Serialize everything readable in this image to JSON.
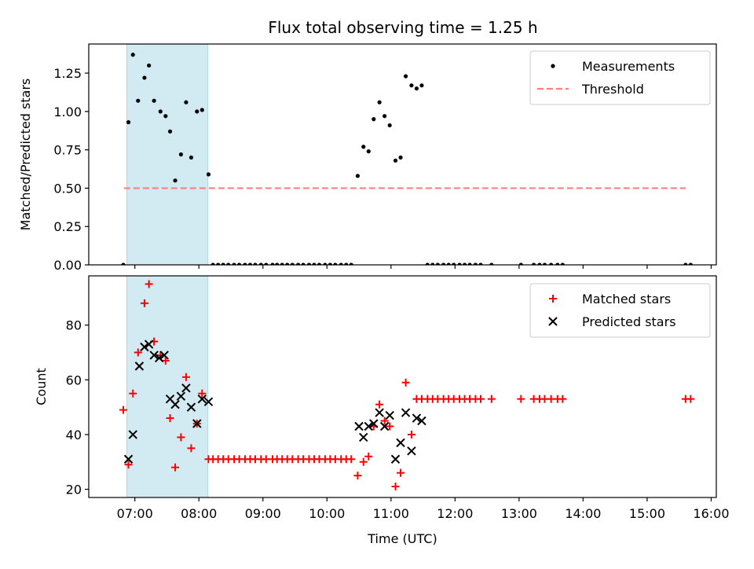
{
  "figure": {
    "title": "Flux total observing time = 1.25 h"
  },
  "chart_data": [
    {
      "type": "scatter",
      "panel": "top",
      "ylabel": "Matched/Predicted stars",
      "xlabel": "",
      "ylim": [
        0,
        1.44
      ],
      "yticks": [
        "0.00",
        "0.25",
        "0.50",
        "0.75",
        "1.00",
        "1.25"
      ],
      "yticks_values": [
        0,
        0.25,
        0.5,
        0.75,
        1.0,
        1.25
      ],
      "xlim_hours": [
        6.28,
        16.08
      ],
      "shaded_span_hours": [
        6.875,
        8.14
      ],
      "shaded_color": "#add8e6",
      "grid": false,
      "legend_position": "top-right",
      "legend": [
        "Measurements",
        "Threshold"
      ],
      "threshold": {
        "name": "Threshold",
        "value": 0.5,
        "x_range_hours": [
          6.83,
          15.6
        ],
        "color": "#ff7f7f",
        "style": "dashed"
      },
      "series": [
        {
          "name": "Measurements",
          "color": "#000000",
          "marker": "dot",
          "x_hours": [
            6.82,
            6.9,
            6.97,
            7.05,
            7.15,
            7.22,
            7.3,
            7.4,
            7.48,
            7.55,
            7.63,
            7.72,
            7.8,
            7.88,
            7.97,
            8.05,
            8.15,
            8.22,
            8.3,
            8.38,
            8.46,
            8.55,
            8.63,
            8.72,
            8.8,
            8.88,
            8.97,
            9.05,
            9.15,
            9.22,
            9.3,
            9.38,
            9.46,
            9.55,
            9.63,
            9.72,
            9.8,
            9.88,
            9.97,
            10.05,
            10.13,
            10.22,
            10.3,
            10.38,
            10.48,
            10.57,
            10.65,
            10.73,
            10.82,
            10.9,
            10.98,
            11.07,
            11.15,
            11.23,
            11.32,
            11.4,
            11.48,
            11.57,
            11.65,
            11.73,
            11.82,
            11.9,
            11.98,
            12.07,
            12.15,
            12.23,
            12.32,
            12.4,
            12.57,
            13.03,
            13.23,
            13.32,
            13.4,
            13.5,
            13.6,
            13.68,
            15.6,
            15.68
          ],
          "y": [
            0.0,
            0.93,
            1.37,
            1.07,
            1.22,
            1.3,
            1.07,
            1.0,
            0.97,
            0.87,
            0.55,
            0.72,
            1.06,
            0.7,
            1.0,
            1.01,
            0.59,
            0.0,
            0.0,
            0.0,
            0.0,
            0.0,
            0.0,
            0.0,
            0.0,
            0.0,
            0.0,
            0.0,
            0.0,
            0.0,
            0.0,
            0.0,
            0.0,
            0.0,
            0.0,
            0.0,
            0.0,
            0.0,
            0.0,
            0.0,
            0.0,
            0.0,
            0.0,
            0.0,
            0.58,
            0.77,
            0.74,
            0.95,
            1.06,
            0.97,
            0.91,
            0.68,
            0.7,
            1.23,
            1.17,
            1.15,
            1.17,
            0.0,
            0.0,
            0.0,
            0.0,
            0.0,
            0.0,
            0.0,
            0.0,
            0.0,
            0.0,
            0.0,
            0.0,
            0.0,
            0.0,
            0.0,
            0.0,
            0.0,
            0.0,
            0.0,
            0.0,
            0.0
          ]
        }
      ]
    },
    {
      "type": "scatter",
      "panel": "bottom",
      "ylabel": "Count",
      "xlabel": "Time (UTC)",
      "ylim": [
        17,
        98
      ],
      "yticks": [
        "20",
        "40",
        "60",
        "80"
      ],
      "yticks_values": [
        20,
        40,
        60,
        80
      ],
      "xlim_hours": [
        6.28,
        16.08
      ],
      "xticks": [
        "07:00",
        "08:00",
        "09:00",
        "10:00",
        "11:00",
        "12:00",
        "13:00",
        "14:00",
        "15:00",
        "16:00"
      ],
      "xticks_hours": [
        7,
        8,
        9,
        10,
        11,
        12,
        13,
        14,
        15,
        16
      ],
      "shaded_span_hours": [
        6.875,
        8.14
      ],
      "shaded_color": "#add8e6",
      "grid": false,
      "legend_position": "top-right",
      "legend": [
        "Matched stars",
        "Predicted stars"
      ],
      "series": [
        {
          "name": "Matched stars",
          "color": "#ff0000",
          "marker": "plus",
          "x_hours": [
            6.82,
            6.9,
            6.97,
            7.05,
            7.15,
            7.22,
            7.3,
            7.4,
            7.48,
            7.55,
            7.63,
            7.72,
            7.8,
            7.88,
            7.97,
            8.05,
            8.15,
            8.22,
            8.3,
            8.38,
            8.46,
            8.55,
            8.63,
            8.72,
            8.8,
            8.88,
            8.97,
            9.05,
            9.15,
            9.22,
            9.3,
            9.38,
            9.46,
            9.55,
            9.63,
            9.72,
            9.8,
            9.88,
            9.97,
            10.05,
            10.13,
            10.22,
            10.3,
            10.38,
            10.48,
            10.57,
            10.65,
            10.73,
            10.82,
            10.9,
            10.98,
            11.07,
            11.15,
            11.23,
            11.32,
            11.4,
            11.48,
            11.57,
            11.65,
            11.73,
            11.82,
            11.9,
            11.98,
            12.07,
            12.15,
            12.23,
            12.32,
            12.4,
            12.57,
            13.03,
            13.23,
            13.32,
            13.4,
            13.5,
            13.6,
            13.68,
            15.6,
            15.68
          ],
          "y": [
            49,
            29,
            55,
            70,
            88,
            95,
            74,
            69,
            67,
            46,
            28,
            39,
            61,
            35,
            44,
            55,
            31,
            31,
            31,
            31,
            31,
            31,
            31,
            31,
            31,
            31,
            31,
            31,
            31,
            31,
            31,
            31,
            31,
            31,
            31,
            31,
            31,
            31,
            31,
            31,
            31,
            31,
            31,
            31,
            25,
            30,
            32,
            43,
            51,
            45,
            43,
            21,
            26,
            59,
            40,
            53,
            53,
            53,
            53,
            53,
            53,
            53,
            53,
            53,
            53,
            53,
            53,
            53,
            53,
            53,
            53,
            53,
            53,
            53,
            53,
            53,
            53,
            53
          ]
        },
        {
          "name": "Predicted stars",
          "color": "#000000",
          "marker": "x",
          "x_hours": [
            6.9,
            6.97,
            7.07,
            7.15,
            7.22,
            7.3,
            7.38,
            7.46,
            7.55,
            7.63,
            7.72,
            7.8,
            7.88,
            7.97,
            8.05,
            8.15,
            10.5,
            10.57,
            10.65,
            10.73,
            10.82,
            10.9,
            10.98,
            11.07,
            11.15,
            11.23,
            11.32,
            11.4,
            11.48
          ],
          "y": [
            31,
            40,
            65,
            72,
            73,
            69,
            68,
            69,
            53,
            51,
            54,
            57,
            50,
            44,
            53,
            52,
            43,
            39,
            43,
            44,
            48,
            43,
            47,
            31,
            37,
            48,
            34,
            46,
            45
          ]
        }
      ]
    }
  ]
}
